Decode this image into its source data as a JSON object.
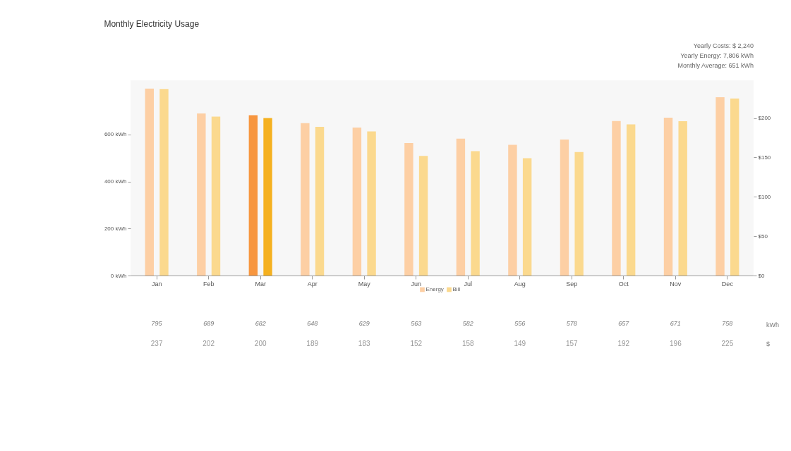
{
  "chart_data": {
    "type": "bar",
    "title": "Monthly Electricity Usage",
    "categories": [
      "Jan",
      "Feb",
      "Mar",
      "Apr",
      "May",
      "Jun",
      "Jul",
      "Aug",
      "Sep",
      "Oct",
      "Nov",
      "Dec"
    ],
    "series": [
      {
        "name": "Energy",
        "color": "#fdcfa4",
        "colors": [
          "#fdcfa4",
          "#fdcfa4",
          "#f7963f",
          "#fdcfa4",
          "#fdcfa4",
          "#fdcfa4",
          "#fdcfa4",
          "#fdcfa4",
          "#fdcfa4",
          "#fdcfa4",
          "#fdcfa4",
          "#fdcfa4"
        ],
        "values": [
          795,
          689,
          682,
          648,
          629,
          563,
          582,
          556,
          578,
          657,
          671,
          758
        ]
      },
      {
        "name": "Bill",
        "color": "#fbd98e",
        "colors": [
          "#fbd98e",
          "#fbd98e",
          "#f5b120",
          "#fbd98e",
          "#fbd98e",
          "#fbd98e",
          "#fbd98e",
          "#fbd98e",
          "#fbd98e",
          "#fbd98e",
          "#fbd98e",
          "#fbd98e"
        ],
        "values": [
          237,
          202,
          200,
          189,
          183,
          152,
          158,
          149,
          157,
          192,
          196,
          225
        ],
        "axis": "y2"
      }
    ],
    "ylim": [
      0,
      830
    ],
    "yticks": [
      {
        "value": 0,
        "label": "0 kWh"
      },
      {
        "value": 200,
        "label": "200 kWh"
      },
      {
        "value": 400,
        "label": "400 kWh"
      },
      {
        "value": 600,
        "label": "600 kWh"
      }
    ],
    "y2lim": [
      0,
      248
    ],
    "y2ticks": [
      {
        "value": 0,
        "label": "$0"
      },
      {
        "value": 50,
        "label": "$50"
      },
      {
        "value": 100,
        "label": "$100"
      },
      {
        "value": 150,
        "label": "$150"
      },
      {
        "value": 200,
        "label": "$200"
      }
    ],
    "legend": "bottom",
    "grid": false,
    "data_labels": true,
    "annotations": [
      "Yearly Costs: $ 2,240",
      "Yearly Energy: 7,806 kWh",
      "Monthly Average: 651 kWh",
      "kWh",
      "$"
    ]
  }
}
